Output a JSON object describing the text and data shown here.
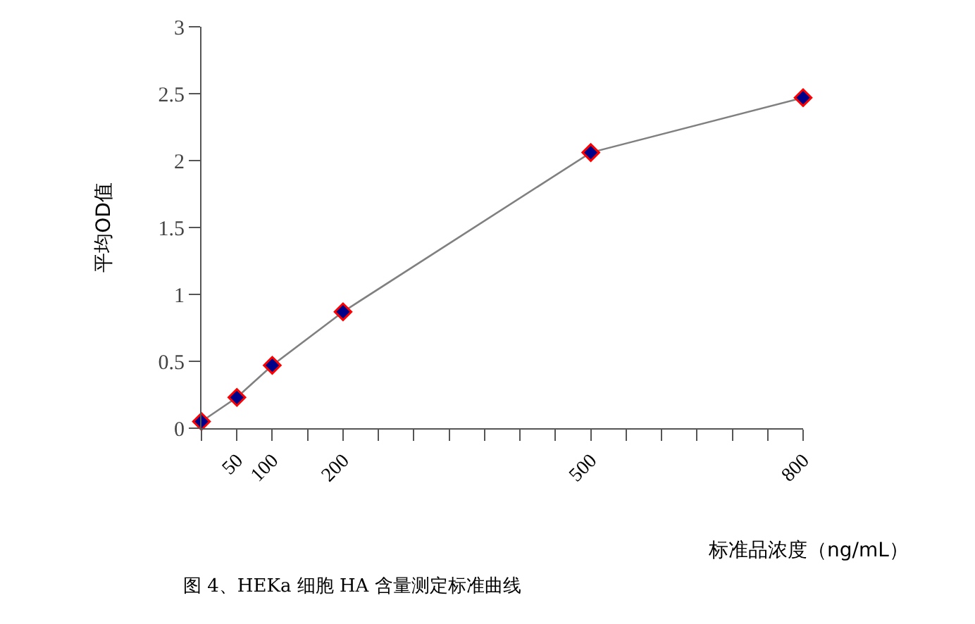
{
  "chart_data": {
    "type": "line",
    "title": "图 4、HEKa 细胞 HA 含量测定标准曲线",
    "xlabel": "标准品浓度（ng/mL）",
    "ylabel": "平均OD值",
    "categories": [
      null,
      "50",
      "100",
      null,
      "200",
      null,
      null,
      null,
      null,
      null,
      null,
      "500",
      null,
      null,
      null,
      null,
      null,
      "800"
    ],
    "series": [
      {
        "color": "#00008b",
        "values": [
          0.05,
          0.23,
          0.47,
          null,
          0.87,
          null,
          null,
          null,
          null,
          null,
          null,
          2.06,
          null,
          null,
          null,
          null,
          null,
          2.47
        ]
      }
    ],
    "ylim": [
      0,
      3
    ],
    "yticks": [
      0,
      0.5,
      1,
      1.5,
      2,
      2.5,
      3
    ],
    "legend": false,
    "marker": "diamond",
    "line_style": "solid"
  }
}
